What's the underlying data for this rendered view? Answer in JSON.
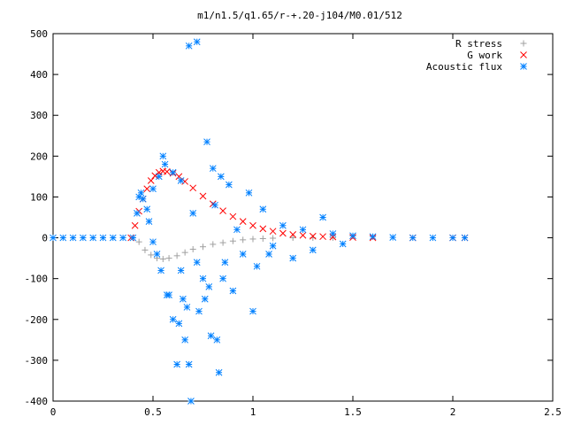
{
  "chart_data": {
    "type": "scatter",
    "title": "m1/n1.5/q1.65/r-+.20-j104/M0.01/512",
    "xlim": [
      0,
      2.5
    ],
    "ylim": [
      -400,
      500
    ],
    "xticks": [
      0,
      0.5,
      1,
      1.5,
      2,
      2.5
    ],
    "xtick_labels": [
      "0",
      "0.5",
      "1",
      "1.5",
      "2",
      "2.5"
    ],
    "yticks": [
      -400,
      -300,
      -200,
      -100,
      0,
      100,
      200,
      300,
      400,
      500
    ],
    "ytick_labels": [
      "-400",
      "-300",
      "-200",
      "-100",
      "0",
      "100",
      "200",
      "300",
      "400",
      "500"
    ],
    "grid": false,
    "legend_position": "top-right",
    "series": [
      {
        "name": "R stress",
        "marker": "plus",
        "color": "#a0a0a0",
        "points": [
          [
            0.4,
            0
          ],
          [
            0.43,
            -10
          ],
          [
            0.46,
            -30
          ],
          [
            0.49,
            -42
          ],
          [
            0.52,
            -50
          ],
          [
            0.55,
            -52
          ],
          [
            0.58,
            -50
          ],
          [
            0.62,
            -44
          ],
          [
            0.66,
            -36
          ],
          [
            0.7,
            -28
          ],
          [
            0.75,
            -22
          ],
          [
            0.8,
            -16
          ],
          [
            0.85,
            -12
          ],
          [
            0.9,
            -8
          ],
          [
            0.95,
            -5
          ],
          [
            1.0,
            -3
          ],
          [
            1.05,
            -2
          ],
          [
            1.1,
            -1
          ],
          [
            1.2,
            0
          ],
          [
            1.3,
            0
          ],
          [
            1.4,
            0
          ]
        ]
      },
      {
        "name": "G work",
        "marker": "cross",
        "color": "#ff0000",
        "points": [
          [
            0.39,
            0
          ],
          [
            0.41,
            30
          ],
          [
            0.43,
            65
          ],
          [
            0.45,
            95
          ],
          [
            0.47,
            120
          ],
          [
            0.49,
            140
          ],
          [
            0.51,
            152
          ],
          [
            0.53,
            160
          ],
          [
            0.55,
            163
          ],
          [
            0.57,
            162
          ],
          [
            0.6,
            158
          ],
          [
            0.63,
            150
          ],
          [
            0.66,
            138
          ],
          [
            0.7,
            122
          ],
          [
            0.75,
            102
          ],
          [
            0.8,
            83
          ],
          [
            0.85,
            66
          ],
          [
            0.9,
            52
          ],
          [
            0.95,
            40
          ],
          [
            1.0,
            30
          ],
          [
            1.05,
            22
          ],
          [
            1.1,
            16
          ],
          [
            1.15,
            11
          ],
          [
            1.2,
            8
          ],
          [
            1.25,
            6
          ],
          [
            1.3,
            4
          ],
          [
            1.35,
            3
          ],
          [
            1.4,
            2
          ],
          [
            1.5,
            1
          ],
          [
            1.6,
            0
          ],
          [
            1.8,
            0
          ],
          [
            2.0,
            0
          ],
          [
            2.06,
            0
          ]
        ]
      },
      {
        "name": "Acoustic flux",
        "marker": "star",
        "color": "#0080ff",
        "points": [
          [
            0.0,
            0
          ],
          [
            0.05,
            0
          ],
          [
            0.1,
            0
          ],
          [
            0.15,
            0
          ],
          [
            0.2,
            0
          ],
          [
            0.25,
            0
          ],
          [
            0.3,
            0
          ],
          [
            0.35,
            0
          ],
          [
            0.4,
            0
          ],
          [
            0.42,
            60
          ],
          [
            0.43,
            100
          ],
          [
            0.44,
            110
          ],
          [
            0.45,
            95
          ],
          [
            0.47,
            70
          ],
          [
            0.48,
            40
          ],
          [
            0.5,
            -10
          ],
          [
            0.5,
            120
          ],
          [
            0.52,
            -40
          ],
          [
            0.53,
            150
          ],
          [
            0.54,
            -80
          ],
          [
            0.55,
            200
          ],
          [
            0.56,
            180
          ],
          [
            0.57,
            -140
          ],
          [
            0.58,
            -140
          ],
          [
            0.6,
            160
          ],
          [
            0.6,
            -200
          ],
          [
            0.62,
            -310
          ],
          [
            0.63,
            -210
          ],
          [
            0.64,
            140
          ],
          [
            0.64,
            -80
          ],
          [
            0.65,
            -150
          ],
          [
            0.66,
            -250
          ],
          [
            0.67,
            -170
          ],
          [
            0.68,
            -310
          ],
          [
            0.68,
            470
          ],
          [
            0.69,
            -400
          ],
          [
            0.7,
            60
          ],
          [
            0.72,
            480
          ],
          [
            0.72,
            -60
          ],
          [
            0.73,
            -180
          ],
          [
            0.75,
            -100
          ],
          [
            0.76,
            -150
          ],
          [
            0.77,
            235
          ],
          [
            0.78,
            -120
          ],
          [
            0.79,
            -240
          ],
          [
            0.8,
            170
          ],
          [
            0.81,
            80
          ],
          [
            0.82,
            -250
          ],
          [
            0.83,
            -330
          ],
          [
            0.84,
            150
          ],
          [
            0.85,
            -100
          ],
          [
            0.86,
            -60
          ],
          [
            0.88,
            130
          ],
          [
            0.9,
            -130
          ],
          [
            0.92,
            20
          ],
          [
            0.95,
            -40
          ],
          [
            0.98,
            110
          ],
          [
            1.0,
            -180
          ],
          [
            1.02,
            -70
          ],
          [
            1.05,
            70
          ],
          [
            1.08,
            -40
          ],
          [
            1.1,
            -20
          ],
          [
            1.15,
            30
          ],
          [
            1.2,
            -50
          ],
          [
            1.25,
            20
          ],
          [
            1.3,
            -30
          ],
          [
            1.35,
            50
          ],
          [
            1.4,
            10
          ],
          [
            1.45,
            -15
          ],
          [
            1.5,
            5
          ],
          [
            1.6,
            3
          ],
          [
            1.7,
            1
          ],
          [
            1.8,
            0
          ],
          [
            1.9,
            0
          ],
          [
            2.0,
            0
          ],
          [
            2.06,
            0
          ]
        ]
      }
    ]
  }
}
